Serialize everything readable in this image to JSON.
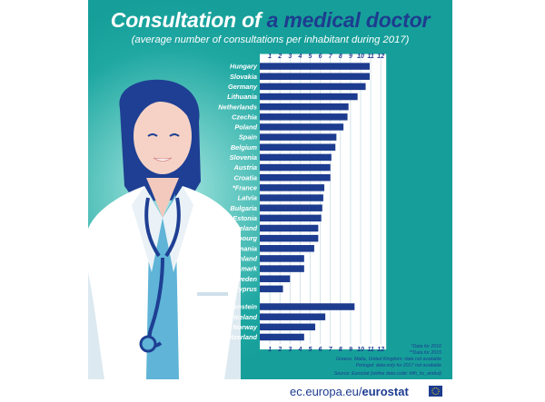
{
  "header": {
    "title_part1": "Consultation of",
    "title_part2": "a medical doctor",
    "subtitle": "(average number of consultations per inhabitant during 2017)"
  },
  "notes": {
    "note1": "*Data for 2016",
    "note2": "**Data for 2015",
    "note3": "Greece, Malta, United Kingdom: data not available",
    "note4": "Portugal: data only for 2017 not available",
    "source": "Source: Eurostat (online data code: hlth_hc_ambul)"
  },
  "footer": {
    "site": "ec.europa.eu/",
    "brand": "eurostat"
  },
  "colors": {
    "bar": "#1d3c8f",
    "panel": "#1fa7a2",
    "tick_text": "#1d3c8f"
  },
  "chart_data": {
    "type": "bar",
    "orientation": "horizontal",
    "title": "Consultation of a medical doctor",
    "subtitle": "(average number of consultations per inhabitant during 2017)",
    "xlim": [
      0,
      12
    ],
    "xticks": [
      1,
      2,
      3,
      4,
      5,
      6,
      7,
      8,
      9,
      10,
      11,
      12
    ],
    "categories": [
      "Hungary",
      "Slovakia",
      "Germany",
      "Lithuania",
      "Netherlands",
      "Czechia",
      "Poland",
      "Spain",
      "Belgium",
      "Slovenia",
      "Austria",
      "Croatia",
      "*France",
      "Latvia",
      "Bulgaria",
      "Estonia",
      "**Ireland",
      "Luxembourg",
      "Romania",
      "Finland",
      "Denmark",
      "Sweden",
      "Cyprus",
      "Liechtenstein",
      "**Iceland",
      "Norway",
      "Switzerland"
    ],
    "values": [
      10.9,
      10.9,
      10.5,
      9.7,
      8.8,
      8.7,
      8.3,
      7.6,
      7.5,
      7.1,
      7.0,
      7.0,
      6.4,
      6.3,
      6.2,
      6.1,
      5.8,
      5.8,
      5.4,
      4.4,
      4.4,
      3.0,
      2.3,
      9.4,
      6.5,
      5.5,
      4.4
    ],
    "groups": [
      23,
      4
    ],
    "grid": true
  }
}
